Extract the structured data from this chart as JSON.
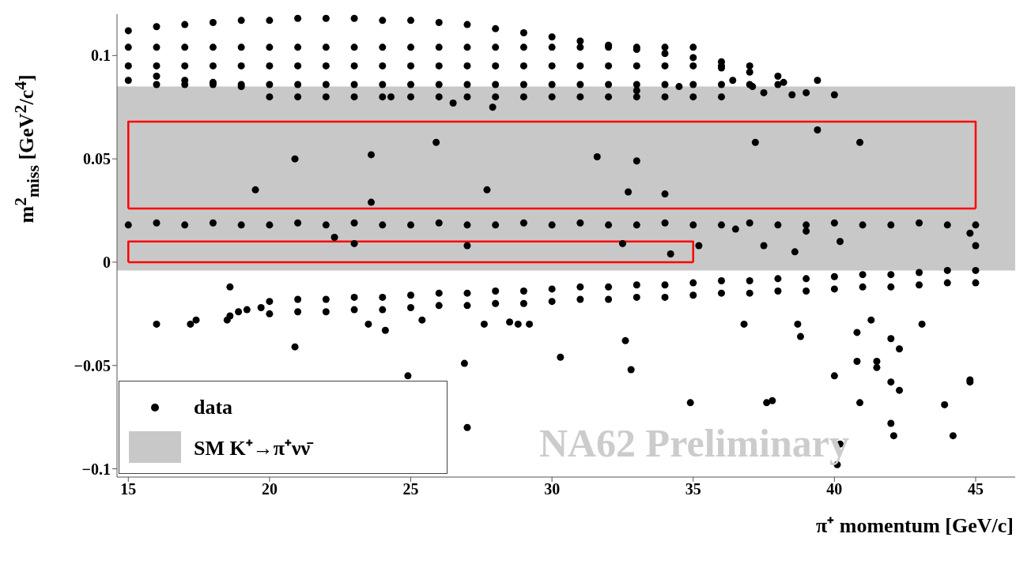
{
  "chart_data": {
    "type": "scatter",
    "xlabel": "π⁺ momentum [GeV/c]",
    "ylabel": "m$^{2}$$_{miss}$ [GeV$^{2}$/c$^{4}$]",
    "xlim": [
      14.6,
      46.4
    ],
    "ylim": [
      -0.104,
      0.12
    ],
    "xticks": [
      15,
      20,
      25,
      30,
      35,
      40,
      45
    ],
    "yticks": [
      {
        "value": -0.1,
        "label": "−0.1"
      },
      {
        "value": -0.05,
        "label": "−0.05"
      },
      0,
      0.05,
      0.1
    ],
    "grid": false,
    "legend": "bottom left",
    "annotations": [
      "NA62 Preliminary"
    ],
    "bands": [
      {
        "axis": "y",
        "from": -0.004,
        "to": 0.085,
        "label": "SM K⁺→π⁺νν̄",
        "color": "#c8c8c8"
      }
    ],
    "series": [
      {
        "type": "line",
        "color": "#ff0000",
        "x": [
          15,
          15,
          45,
          45
        ],
        "values": [
          0.026,
          0.068,
          0.068,
          0.026
        ]
      },
      {
        "type": "line",
        "color": "#ff0000",
        "x": [
          15,
          45
        ],
        "values": [
          0.026,
          0.026
        ]
      },
      {
        "type": "line",
        "color": "#ff0000",
        "x": [
          15,
          15,
          35,
          35
        ],
        "values": [
          0,
          0.01,
          0.01,
          0
        ]
      },
      {
        "type": "line",
        "color": "#ff0000",
        "x": [
          15,
          35
        ],
        "values": [
          0,
          0
        ]
      },
      {
        "name": "data",
        "color": "#000000",
        "marker": "circle",
        "x": [
          15,
          16,
          17,
          18,
          19,
          20,
          21,
          22,
          23,
          24,
          25,
          26,
          27,
          28,
          29,
          30,
          31,
          32,
          33,
          34,
          35,
          36,
          15,
          16,
          17,
          18,
          19,
          20,
          21,
          22,
          23,
          24,
          25,
          26,
          27,
          28,
          29,
          30,
          31,
          32,
          33,
          34,
          35,
          36,
          37,
          38,
          15,
          16,
          17,
          18,
          19,
          20,
          21,
          22,
          23,
          24,
          25,
          26,
          27,
          28,
          29,
          30,
          31,
          32,
          33,
          34,
          35,
          36,
          37,
          38,
          15,
          16,
          17,
          18,
          19,
          20,
          21,
          22,
          23,
          24,
          25,
          26,
          27,
          28,
          29,
          30,
          31,
          32,
          33,
          34,
          35,
          36,
          37,
          20,
          21,
          22,
          23,
          24,
          25,
          26,
          27,
          28,
          29,
          30,
          31,
          32,
          33,
          34,
          35,
          36,
          16,
          17,
          18,
          19,
          24.3,
          26.5,
          27.9,
          33,
          34.5,
          36.4,
          37.1,
          37.5,
          38.2,
          38.5,
          39.4,
          40,
          39,
          15,
          16,
          17,
          18,
          19,
          20,
          21,
          22,
          23,
          24,
          25,
          26,
          27,
          28,
          29,
          30,
          31,
          32,
          33,
          34,
          35,
          36,
          37,
          38,
          39,
          40,
          41,
          42,
          43,
          44,
          45,
          20,
          20,
          21,
          21,
          22,
          22,
          23,
          23,
          24,
          24,
          25,
          25,
          26,
          26,
          27,
          27,
          28,
          28,
          29,
          29,
          30,
          30,
          31,
          31,
          32,
          32,
          33,
          33,
          34,
          34,
          35,
          35,
          36,
          36,
          37,
          37,
          38,
          38,
          39,
          39,
          40,
          40,
          41,
          41,
          42,
          42,
          43,
          43,
          44,
          44,
          45,
          45,
          16,
          17.2,
          17.4,
          18.5,
          18.6,
          18.9,
          19.2,
          19.7,
          19.5,
          20.9,
          23.6,
          23.6,
          25.9,
          27.7,
          31.6,
          32.7,
          33,
          34,
          37.2,
          39.4,
          40.9,
          22.3,
          23,
          27,
          32.5,
          34.2,
          35.2,
          37.5,
          38.6,
          40.2,
          45,
          44.8,
          36.5,
          39,
          18.6,
          20.9,
          23.5,
          24.1,
          25.4,
          26.9,
          24.9,
          27,
          27.6,
          28.8,
          29.2,
          30.3,
          32.6,
          32.8,
          34.9,
          36.8,
          37.6,
          37.8,
          38.7,
          38.8,
          40,
          40.2,
          40.1,
          40.8,
          40.8,
          40.9,
          41.5,
          41.5,
          42,
          42,
          42,
          42.1,
          42.3,
          43.9,
          44.2,
          44.8,
          44.8,
          43.1,
          42.3,
          41.3,
          28.5
        ],
        "values": [
          0.112,
          0.114,
          0.115,
          0.116,
          0.117,
          0.117,
          0.118,
          0.118,
          0.118,
          0.117,
          0.117,
          0.116,
          0.115,
          0.113,
          0.111,
          0.109,
          0.107,
          0.105,
          0.103,
          0.101,
          0.099,
          0.097,
          0.104,
          0.104,
          0.104,
          0.104,
          0.104,
          0.104,
          0.104,
          0.104,
          0.104,
          0.104,
          0.104,
          0.104,
          0.104,
          0.104,
          0.104,
          0.104,
          0.104,
          0.104,
          0.104,
          0.104,
          0.104,
          0.094,
          0.092,
          0.09,
          0.095,
          0.095,
          0.095,
          0.095,
          0.095,
          0.095,
          0.095,
          0.095,
          0.095,
          0.095,
          0.095,
          0.095,
          0.095,
          0.095,
          0.095,
          0.095,
          0.095,
          0.095,
          0.095,
          0.095,
          0.095,
          0.095,
          0.095,
          0.086,
          0.088,
          0.086,
          0.086,
          0.086,
          0.086,
          0.086,
          0.086,
          0.086,
          0.086,
          0.086,
          0.086,
          0.086,
          0.086,
          0.086,
          0.086,
          0.086,
          0.086,
          0.086,
          0.086,
          0.086,
          0.086,
          0.086,
          0.086,
          0.08,
          0.08,
          0.08,
          0.08,
          0.08,
          0.08,
          0.08,
          0.08,
          0.08,
          0.08,
          0.08,
          0.08,
          0.08,
          0.08,
          0.08,
          0.08,
          0.08,
          0.09,
          0.088,
          0.087,
          0.085,
          0.08,
          0.077,
          0.075,
          0.083,
          0.085,
          0.088,
          0.085,
          0.082,
          0.087,
          0.081,
          0.088,
          0.081,
          0.082,
          0.018,
          0.019,
          0.018,
          0.019,
          0.018,
          0.018,
          0.019,
          0.018,
          0.019,
          0.018,
          0.018,
          0.019,
          0.018,
          0.018,
          0.019,
          0.018,
          0.019,
          0.018,
          0.018,
          0.019,
          0.018,
          0.018,
          0.019,
          0.018,
          0.018,
          0.019,
          0.018,
          0.018,
          0.019,
          0.018,
          0.018,
          -0.019,
          -0.025,
          -0.018,
          -0.024,
          -0.018,
          -0.024,
          -0.017,
          -0.023,
          -0.017,
          -0.023,
          -0.016,
          -0.022,
          -0.015,
          -0.021,
          -0.015,
          -0.021,
          -0.014,
          -0.02,
          -0.014,
          -0.02,
          -0.013,
          -0.019,
          -0.012,
          -0.018,
          -0.012,
          -0.018,
          -0.011,
          -0.017,
          -0.011,
          -0.017,
          -0.01,
          -0.016,
          -0.009,
          -0.015,
          -0.009,
          -0.015,
          -0.008,
          -0.014,
          -0.008,
          -0.014,
          -0.007,
          -0.013,
          -0.006,
          -0.012,
          -0.006,
          -0.012,
          -0.005,
          -0.011,
          -0.004,
          -0.01,
          -0.004,
          -0.01,
          -0.03,
          -0.03,
          -0.028,
          -0.028,
          -0.026,
          -0.024,
          -0.023,
          -0.022,
          0.035,
          0.05,
          0.052,
          0.029,
          0.058,
          0.035,
          0.051,
          0.034,
          0.049,
          0.033,
          0.058,
          0.064,
          0.058,
          0.012,
          0.009,
          0.008,
          0.009,
          0.004,
          0.008,
          0.008,
          0.005,
          0.01,
          0.008,
          0.014,
          0.016,
          0.015,
          -0.012,
          -0.041,
          -0.03,
          -0.033,
          -0.028,
          -0.049,
          -0.055,
          -0.08,
          -0.03,
          -0.03,
          -0.03,
          -0.046,
          -0.038,
          -0.052,
          -0.068,
          -0.03,
          -0.068,
          -0.067,
          -0.03,
          -0.036,
          -0.055,
          -0.088,
          -0.098,
          -0.034,
          -0.048,
          -0.068,
          -0.048,
          -0.051,
          -0.037,
          -0.058,
          -0.078,
          -0.084,
          -0.062,
          -0.069,
          -0.084,
          -0.057,
          -0.058,
          -0.03,
          -0.042,
          -0.028,
          -0.029
        ]
      }
    ]
  }
}
